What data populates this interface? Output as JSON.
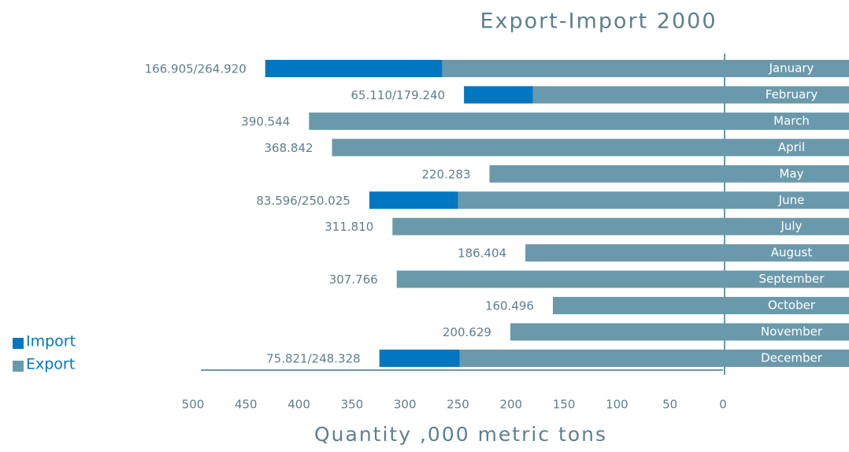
{
  "chart_data": {
    "type": "bar",
    "orientation": "horizontal",
    "stacked": true,
    "title": "Export-Import 2000",
    "x_label": "Quantity ,000 metric tons",
    "categories": [
      "January",
      "February",
      "March",
      "April",
      "May",
      "June",
      "July",
      "August",
      "September",
      "October",
      "November",
      "December"
    ],
    "series": [
      {
        "name": "Export",
        "color": "#6b99ac",
        "values": [
          264.92,
          179.24,
          390.544,
          368.842,
          220.283,
          250.025,
          311.81,
          186.404,
          307.766,
          160.496,
          200.629,
          248.328
        ]
      },
      {
        "name": "Import",
        "color": "#0077c0",
        "values": [
          166.905,
          65.11,
          null,
          null,
          null,
          83.596,
          null,
          null,
          null,
          null,
          null,
          75.821
        ]
      }
    ],
    "data_labels": [
      "166.905/264.920",
      "65.110/179.240",
      "390.544",
      "368.842",
      "220.283",
      "83.596/250.025",
      "311.810",
      "186.404",
      "307.766",
      "160.496",
      "200.629",
      "75.821/248.328"
    ],
    "xlim": [
      0,
      500
    ],
    "x_reversed": true,
    "xticks": [
      500,
      450,
      400,
      350,
      300,
      250,
      200,
      150,
      100,
      50,
      0
    ],
    "legend": "bottom-left"
  }
}
